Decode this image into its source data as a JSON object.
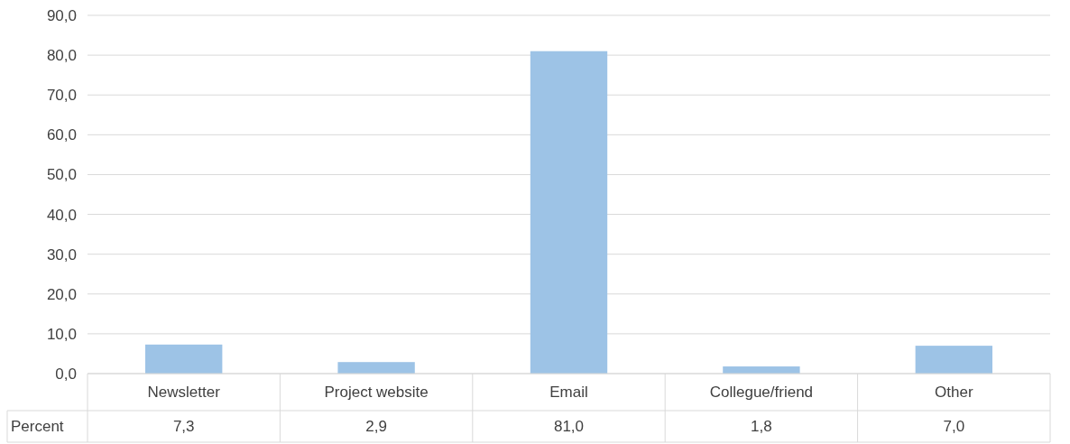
{
  "chart_data": {
    "type": "bar",
    "categories": [
      "Newsletter",
      "Project website",
      "Email",
      "Collegue/friend",
      "Other"
    ],
    "series": [
      {
        "name": "Percent",
        "color": "#9dc3e6",
        "values": [
          7.3,
          2.9,
          81.0,
          1.8,
          7.0
        ],
        "value_labels": [
          "7,3",
          "2,9",
          "81,0",
          "1,8",
          "7,0"
        ]
      }
    ],
    "ylim": [
      0,
      90
    ],
    "yticks": [
      {
        "value": 0,
        "label": "0,0"
      },
      {
        "value": 10,
        "label": "10,0"
      },
      {
        "value": 20,
        "label": "20,0"
      },
      {
        "value": 30,
        "label": "30,0"
      },
      {
        "value": 40,
        "label": "40,0"
      },
      {
        "value": 50,
        "label": "50,0"
      },
      {
        "value": 60,
        "label": "60,0"
      },
      {
        "value": 70,
        "label": "70,0"
      },
      {
        "value": 80,
        "label": "80,0"
      },
      {
        "value": 90,
        "label": "90,0"
      }
    ],
    "grid": "y"
  }
}
